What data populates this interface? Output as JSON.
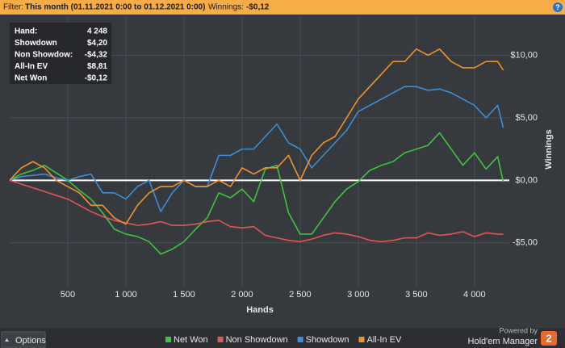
{
  "filter_bar": {
    "label": "Filter:",
    "value": "This month (01.11.2021 0:00 to 01.12.2021 0:00)",
    "winnings_label": "Winnings:",
    "winnings_value": "-$0,12",
    "help": "?"
  },
  "stats": [
    {
      "label": "Hand:",
      "value": "4 248"
    },
    {
      "label": "Showdown",
      "value": "$4,20"
    },
    {
      "label": "Non Showdow:",
      "value": "-$4,32"
    },
    {
      "label": "All-In EV",
      "value": "$8,81"
    },
    {
      "label": "Net Won",
      "value": "-$0,12"
    }
  ],
  "footer": {
    "options": "Options",
    "powered_by": "Powered by",
    "brand": "Hold'em Manager",
    "logo": "2"
  },
  "chart_data": {
    "type": "line",
    "x_label": "Hands",
    "y_label": "Winnings",
    "x": [
      0,
      100,
      200,
      300,
      400,
      500,
      600,
      700,
      800,
      900,
      1000,
      1100,
      1200,
      1300,
      1400,
      1500,
      1600,
      1700,
      1800,
      1900,
      2000,
      2100,
      2200,
      2300,
      2400,
      2500,
      2600,
      2700,
      2800,
      2900,
      3000,
      3100,
      3200,
      3300,
      3400,
      3500,
      3600,
      3700,
      3800,
      3900,
      4000,
      4100,
      4200,
      4248
    ],
    "series": [
      {
        "name": "Net Won",
        "color": "#3fc43f",
        "values": [
          0,
          0.5,
          0.8,
          1.2,
          0.6,
          0,
          -0.8,
          -1.5,
          -2.6,
          -3.9,
          -4.3,
          -4.5,
          -4.9,
          -5.9,
          -5.5,
          -4.9,
          -3.9,
          -3,
          -1,
          -1.4,
          -0.7,
          -1.7,
          0.9,
          1.2,
          -2.6,
          -4.3,
          -4.3,
          -3,
          -1.7,
          -0.7,
          -0.1,
          0.8,
          1.2,
          1.5,
          2.2,
          2.5,
          2.8,
          3.8,
          2.5,
          1.2,
          2.2,
          0.9,
          1.9,
          -0.12
        ]
      },
      {
        "name": "Non Showdown",
        "color": "#e05858",
        "values": [
          0,
          -0.3,
          -0.6,
          -0.9,
          -1.2,
          -1.5,
          -2,
          -2.5,
          -2.9,
          -3.2,
          -3.4,
          -3.6,
          -3.5,
          -3.3,
          -3.6,
          -3.6,
          -3.5,
          -3.3,
          -3.2,
          -3.7,
          -3.8,
          -3.7,
          -4.4,
          -4.6,
          -4.8,
          -4.9,
          -4.7,
          -4.4,
          -4.2,
          -4.3,
          -4.5,
          -4.8,
          -4.9,
          -4.8,
          -4.6,
          -4.6,
          -4.2,
          -4.4,
          -4.3,
          -4.1,
          -4.5,
          -4.2,
          -4.3,
          -4.32
        ]
      },
      {
        "name": "Showdown",
        "color": "#3b8fd9",
        "values": [
          0,
          0.3,
          0.4,
          0.5,
          0.2,
          0,
          0.3,
          0.5,
          -1,
          -1,
          -1.5,
          -0.5,
          0,
          -2.5,
          -1,
          0,
          -0.5,
          -0.5,
          2,
          2,
          2.5,
          2.5,
          3.5,
          4.5,
          3,
          2.5,
          1,
          2,
          3,
          4,
          5.5,
          6,
          6.5,
          7,
          7.5,
          7.5,
          7.2,
          7.3,
          7,
          6.5,
          6,
          5,
          6,
          4.2
        ]
      },
      {
        "name": "All-In EV",
        "color": "#f0922e",
        "values": [
          0,
          1,
          1.5,
          1,
          0,
          -0.5,
          -1,
          -2,
          -2,
          -3,
          -3.5,
          -2,
          -1,
          -0.5,
          -0.5,
          0,
          -0.5,
          -0.5,
          0,
          -0.5,
          1,
          0.5,
          1,
          1,
          2,
          0,
          2,
          3,
          3.5,
          5,
          6.5,
          7.5,
          8.5,
          9.5,
          9.5,
          10.5,
          10,
          10.5,
          9.5,
          9,
          9,
          9.5,
          9.5,
          8.81
        ]
      }
    ],
    "xlim": [
      0,
      4300
    ],
    "ylim": [
      -8.5,
      13
    ],
    "xticks": [
      500,
      {
        "value": 1000,
        "label": "1 000"
      },
      {
        "value": 1500,
        "label": "1 500"
      },
      {
        "value": 2000,
        "label": "2 000"
      },
      {
        "value": 2500,
        "label": "2 500"
      },
      {
        "value": 3000,
        "label": "3 000"
      },
      {
        "value": 3500,
        "label": "3 500"
      },
      {
        "value": 4000,
        "label": "4 000"
      }
    ],
    "yticks": [
      {
        "value": -5,
        "label": "-$5,00"
      },
      {
        "value": 0,
        "label": "$0,00"
      },
      {
        "value": 5,
        "label": "$5,00"
      },
      {
        "value": 10,
        "label": "$10,00"
      }
    ],
    "grid": true,
    "zero_line_color": "#ffffff"
  }
}
